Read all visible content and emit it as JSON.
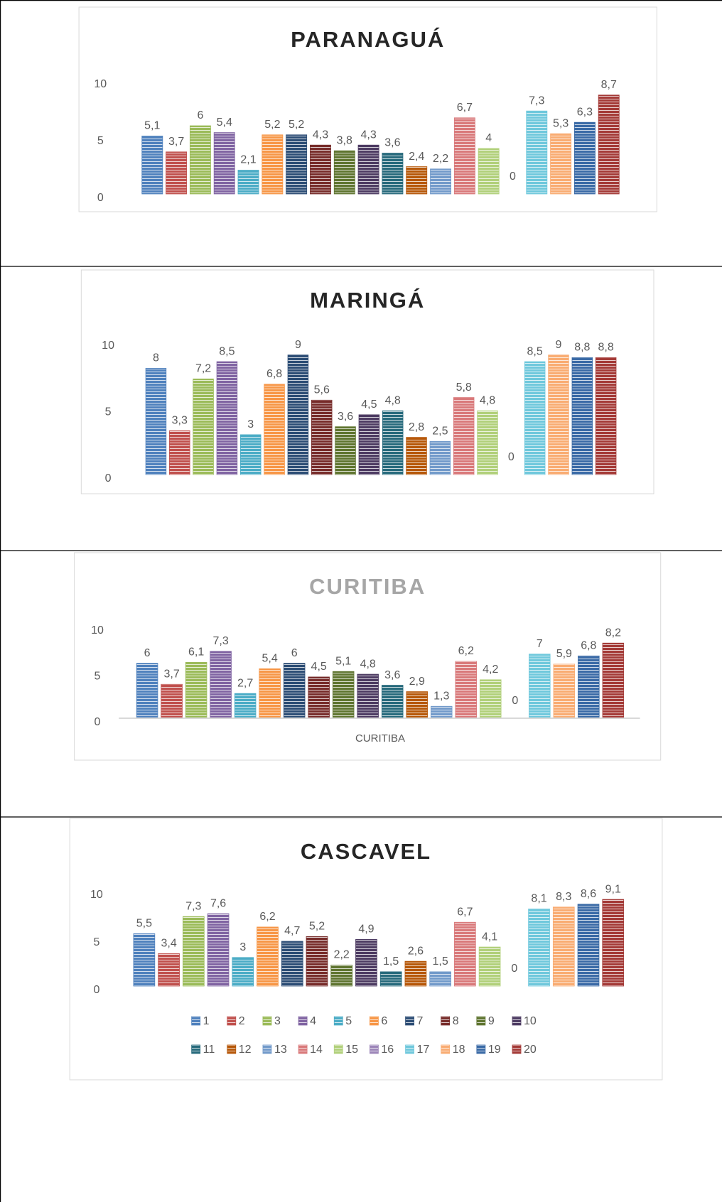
{
  "chart_data": [
    {
      "type": "bar",
      "title": "PARANAGUÁ",
      "title_color": "#262626",
      "ylim": [
        0,
        10
      ],
      "yticks": [
        0,
        5,
        10
      ],
      "series": [
        {
          "color": "#4f81bd",
          "values": [
            5.1
          ],
          "value_labels": [
            "5,1"
          ]
        },
        {
          "color": "#c0504d",
          "values": [
            3.7
          ],
          "value_labels": [
            "3,7"
          ]
        },
        {
          "color": "#9bbb59",
          "values": [
            6
          ],
          "value_labels": [
            "6"
          ]
        },
        {
          "color": "#8064a2",
          "values": [
            5.4
          ],
          "value_labels": [
            "5,4"
          ]
        },
        {
          "color": "#4bacc6",
          "values": [
            2.1
          ],
          "value_labels": [
            "2,1"
          ]
        },
        {
          "color": "#f79646",
          "values": [
            5.2
          ],
          "value_labels": [
            "5,2"
          ]
        },
        {
          "color": "#2c4d75",
          "values": [
            5.2
          ],
          "value_labels": [
            "5,2"
          ]
        },
        {
          "color": "#772c2a",
          "values": [
            4.3
          ],
          "value_labels": [
            "4,3"
          ]
        },
        {
          "color": "#5f7530",
          "values": [
            3.8
          ],
          "value_labels": [
            "3,8"
          ]
        },
        {
          "color": "#4d3b62",
          "values": [
            4.3
          ],
          "value_labels": [
            "4,3"
          ]
        },
        {
          "color": "#276a7c",
          "values": [
            3.6
          ],
          "value_labels": [
            "3,6"
          ]
        },
        {
          "color": "#b65708",
          "values": [
            2.4
          ],
          "value_labels": [
            "2,4"
          ]
        },
        {
          "color": "#729aca",
          "values": [
            2.2
          ],
          "value_labels": [
            "2,2"
          ]
        },
        {
          "color": "#d9797a",
          "values": [
            6.7
          ],
          "value_labels": [
            "6,7"
          ]
        },
        {
          "color": "#b1d07a",
          "values": [
            4
          ],
          "value_labels": [
            "4"
          ]
        },
        {
          "color": "#9d86b9",
          "values": [
            0
          ],
          "value_labels": [
            "0"
          ]
        },
        {
          "color": "#6fc8dc",
          "values": [
            7.3
          ],
          "value_labels": [
            "7,3"
          ]
        },
        {
          "color": "#f9ac72",
          "values": [
            5.3
          ],
          "value_labels": [
            "5,3"
          ]
        },
        {
          "color": "#3a6aa6",
          "values": [
            6.3
          ],
          "value_labels": [
            "6,3"
          ]
        },
        {
          "color": "#a43a37",
          "values": [
            8.7
          ],
          "value_labels": [
            "8,7"
          ]
        }
      ]
    },
    {
      "type": "bar",
      "title": "MARINGÁ",
      "title_color": "#262626",
      "ylim": [
        0,
        10
      ],
      "yticks": [
        0,
        5,
        10
      ],
      "series": [
        {
          "color": "#4f81bd",
          "values": [
            8
          ],
          "value_labels": [
            "8"
          ]
        },
        {
          "color": "#c0504d",
          "values": [
            3.3
          ],
          "value_labels": [
            "3,3"
          ]
        },
        {
          "color": "#9bbb59",
          "values": [
            7.2
          ],
          "value_labels": [
            "7,2"
          ]
        },
        {
          "color": "#8064a2",
          "values": [
            8.5
          ],
          "value_labels": [
            "8,5"
          ]
        },
        {
          "color": "#4bacc6",
          "values": [
            3
          ],
          "value_labels": [
            "3"
          ]
        },
        {
          "color": "#f79646",
          "values": [
            6.8
          ],
          "value_labels": [
            "6,8"
          ]
        },
        {
          "color": "#2c4d75",
          "values": [
            9
          ],
          "value_labels": [
            "9"
          ]
        },
        {
          "color": "#772c2a",
          "values": [
            5.6
          ],
          "value_labels": [
            "5,6"
          ]
        },
        {
          "color": "#5f7530",
          "values": [
            3.6
          ],
          "value_labels": [
            "3,6"
          ]
        },
        {
          "color": "#4d3b62",
          "values": [
            4.5
          ],
          "value_labels": [
            "4,5"
          ]
        },
        {
          "color": "#276a7c",
          "values": [
            4.8
          ],
          "value_labels": [
            "4,8"
          ]
        },
        {
          "color": "#b65708",
          "values": [
            2.8
          ],
          "value_labels": [
            "2,8"
          ]
        },
        {
          "color": "#729aca",
          "values": [
            2.5
          ],
          "value_labels": [
            "2,5"
          ]
        },
        {
          "color": "#d9797a",
          "values": [
            5.8
          ],
          "value_labels": [
            "5,8"
          ]
        },
        {
          "color": "#b1d07a",
          "values": [
            4.8
          ],
          "value_labels": [
            "4,8"
          ]
        },
        {
          "color": "#9d86b9",
          "values": [
            0
          ],
          "value_labels": [
            "0"
          ]
        },
        {
          "color": "#6fc8dc",
          "values": [
            8.5
          ],
          "value_labels": [
            "8,5"
          ]
        },
        {
          "color": "#f9ac72",
          "values": [
            9
          ],
          "value_labels": [
            "9"
          ]
        },
        {
          "color": "#3a6aa6",
          "values": [
            8.8
          ],
          "value_labels": [
            "8,8"
          ]
        },
        {
          "color": "#a43a37",
          "values": [
            8.8
          ],
          "value_labels": [
            "8,8"
          ]
        }
      ]
    },
    {
      "type": "bar",
      "title": "CURITIBA",
      "title_color": "#a6a6a6",
      "ylim": [
        0,
        10
      ],
      "yticks": [
        0,
        5,
        10
      ],
      "categories": [
        "CURITIBA"
      ],
      "x_axis_line": true,
      "series": [
        {
          "color": "#4f81bd",
          "values": [
            6
          ],
          "value_labels": [
            "6"
          ]
        },
        {
          "color": "#c0504d",
          "values": [
            3.7
          ],
          "value_labels": [
            "3,7"
          ]
        },
        {
          "color": "#9bbb59",
          "values": [
            6.1
          ],
          "value_labels": [
            "6,1"
          ]
        },
        {
          "color": "#8064a2",
          "values": [
            7.3
          ],
          "value_labels": [
            "7,3"
          ]
        },
        {
          "color": "#4bacc6",
          "values": [
            2.7
          ],
          "value_labels": [
            "2,7"
          ]
        },
        {
          "color": "#f79646",
          "values": [
            5.4
          ],
          "value_labels": [
            "5,4"
          ]
        },
        {
          "color": "#2c4d75",
          "values": [
            6
          ],
          "value_labels": [
            "6"
          ]
        },
        {
          "color": "#772c2a",
          "values": [
            4.5
          ],
          "value_labels": [
            "4,5"
          ]
        },
        {
          "color": "#5f7530",
          "values": [
            5.1
          ],
          "value_labels": [
            "5,1"
          ]
        },
        {
          "color": "#4d3b62",
          "values": [
            4.8
          ],
          "value_labels": [
            "4,8"
          ]
        },
        {
          "color": "#276a7c",
          "values": [
            3.6
          ],
          "value_labels": [
            "3,6"
          ]
        },
        {
          "color": "#b65708",
          "values": [
            2.9
          ],
          "value_labels": [
            "2,9"
          ]
        },
        {
          "color": "#729aca",
          "values": [
            1.3
          ],
          "value_labels": [
            "1,3"
          ]
        },
        {
          "color": "#d9797a",
          "values": [
            6.2
          ],
          "value_labels": [
            "6,2"
          ]
        },
        {
          "color": "#b1d07a",
          "values": [
            4.2
          ],
          "value_labels": [
            "4,2"
          ]
        },
        {
          "color": "#9d86b9",
          "values": [
            0
          ],
          "value_labels": [
            "0"
          ]
        },
        {
          "color": "#6fc8dc",
          "values": [
            7
          ],
          "value_labels": [
            "7"
          ]
        },
        {
          "color": "#f9ac72",
          "values": [
            5.9
          ],
          "value_labels": [
            "5,9"
          ]
        },
        {
          "color": "#3a6aa6",
          "values": [
            6.8
          ],
          "value_labels": [
            "6,8"
          ]
        },
        {
          "color": "#a43a37",
          "values": [
            8.2
          ],
          "value_labels": [
            "8,2"
          ]
        }
      ]
    },
    {
      "type": "bar",
      "title": "CASCAVEL",
      "title_color": "#262626",
      "ylim": [
        0,
        10
      ],
      "yticks": [
        0,
        5,
        10
      ],
      "legend": "bottom",
      "series": [
        {
          "name": "1",
          "color": "#4f81bd",
          "values": [
            5.5
          ],
          "value_labels": [
            "5,5"
          ]
        },
        {
          "name": "2",
          "color": "#c0504d",
          "values": [
            3.4
          ],
          "value_labels": [
            "3,4"
          ]
        },
        {
          "name": "3",
          "color": "#9bbb59",
          "values": [
            7.3
          ],
          "value_labels": [
            "7,3"
          ]
        },
        {
          "name": "4",
          "color": "#8064a2",
          "values": [
            7.6
          ],
          "value_labels": [
            "7,6"
          ]
        },
        {
          "name": "5",
          "color": "#4bacc6",
          "values": [
            3
          ],
          "value_labels": [
            "3"
          ]
        },
        {
          "name": "6",
          "color": "#f79646",
          "values": [
            6.2
          ],
          "value_labels": [
            "6,2"
          ]
        },
        {
          "name": "7",
          "color": "#2c4d75",
          "values": [
            4.7
          ],
          "value_labels": [
            "4,7"
          ]
        },
        {
          "name": "8",
          "color": "#772c2a",
          "values": [
            5.2
          ],
          "value_labels": [
            "5,2"
          ]
        },
        {
          "name": "9",
          "color": "#5f7530",
          "values": [
            2.2
          ],
          "value_labels": [
            "2,2"
          ]
        },
        {
          "name": "10",
          "color": "#4d3b62",
          "values": [
            4.9
          ],
          "value_labels": [
            "4,9"
          ]
        },
        {
          "name": "11",
          "color": "#276a7c",
          "values": [
            1.5
          ],
          "value_labels": [
            "1,5"
          ]
        },
        {
          "name": "12",
          "color": "#b65708",
          "values": [
            2.6
          ],
          "value_labels": [
            "2,6"
          ]
        },
        {
          "name": "13",
          "color": "#729aca",
          "values": [
            1.5
          ],
          "value_labels": [
            "1,5"
          ]
        },
        {
          "name": "14",
          "color": "#d9797a",
          "values": [
            6.7
          ],
          "value_labels": [
            "6,7"
          ]
        },
        {
          "name": "15",
          "color": "#b1d07a",
          "values": [
            4.1
          ],
          "value_labels": [
            "4,1"
          ]
        },
        {
          "name": "16",
          "color": "#9d86b9",
          "values": [
            0
          ],
          "value_labels": [
            "0"
          ]
        },
        {
          "name": "17",
          "color": "#6fc8dc",
          "values": [
            8.1
          ],
          "value_labels": [
            "8,1"
          ]
        },
        {
          "name": "18",
          "color": "#f9ac72",
          "values": [
            8.3
          ],
          "value_labels": [
            "8,3"
          ]
        },
        {
          "name": "19",
          "color": "#3a6aa6",
          "values": [
            8.6
          ],
          "value_labels": [
            "8,6"
          ]
        },
        {
          "name": "20",
          "color": "#a43a37",
          "values": [
            9.1
          ],
          "value_labels": [
            "9,1"
          ]
        }
      ]
    }
  ]
}
